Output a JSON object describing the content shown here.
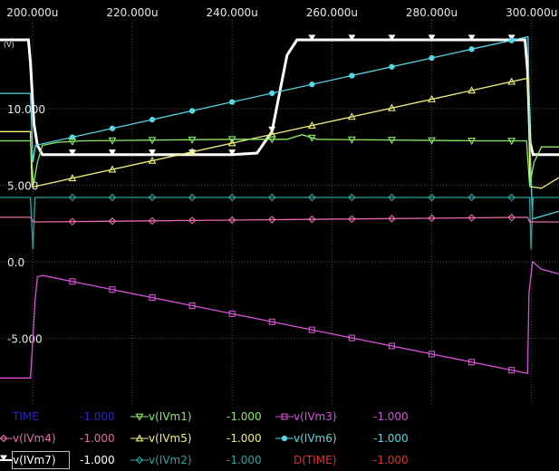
{
  "chart_data": {
    "type": "line",
    "title": "",
    "xlabel": "",
    "ylabel": "(V)",
    "xlim": [
      193.5,
      305.5
    ],
    "ylim": [
      -9.3,
      15.8
    ],
    "x_ticks": [
      200,
      220,
      240,
      260,
      280,
      300
    ],
    "x_tick_labels": [
      "200.000u",
      "220.000u",
      "240.000u",
      "260.000u",
      "280.000u",
      "300.000u"
    ],
    "y_ticks": [
      10,
      5,
      0,
      -5
    ],
    "y_tick_labels": [
      "10.000",
      "5.000",
      "0.0",
      "-5.000"
    ],
    "grid": true,
    "series": [
      {
        "name": "v(IVm7)",
        "color": "#ffffff",
        "marker": "arrow",
        "points": [
          [
            193.5,
            14.5
          ],
          [
            199.2,
            14.5
          ],
          [
            199.6,
            13.0
          ],
          [
            200.3,
            9.0
          ],
          [
            201,
            7.6
          ],
          [
            202,
            7.0
          ],
          [
            205,
            7.0
          ],
          [
            240,
            7.0
          ],
          [
            245,
            7.1
          ],
          [
            248,
            8.5
          ],
          [
            249.5,
            11.0
          ],
          [
            251,
            13.5
          ],
          [
            253,
            14.5
          ],
          [
            298.7,
            14.5
          ],
          [
            299.2,
            12.5
          ],
          [
            299.7,
            7.8
          ],
          [
            300.3,
            7.0
          ],
          [
            302,
            7.0
          ],
          [
            305.5,
            7.0
          ]
        ]
      },
      {
        "name": "v(IVm6)",
        "color": "#55d8e6",
        "marker": "dot",
        "points": [
          [
            193.5,
            11.0
          ],
          [
            199.6,
            11.0
          ],
          [
            200.1,
            6.5
          ],
          [
            200.6,
            7.6
          ],
          [
            299.3,
            14.7
          ],
          [
            299.7,
            7.5
          ],
          [
            300.2,
            2.8
          ],
          [
            305.5,
            3.3
          ]
        ]
      },
      {
        "name": "v(IVm5)",
        "color": "#f2f27a",
        "marker": "triangle",
        "points": [
          [
            193.5,
            8.5
          ],
          [
            199.6,
            8.5
          ],
          [
            199.9,
            4.9
          ],
          [
            200.3,
            4.9
          ],
          [
            299.3,
            12.0
          ],
          [
            299.7,
            4.9
          ],
          [
            302,
            4.8
          ],
          [
            305.5,
            5.5
          ]
        ]
      },
      {
        "name": "v(IVm1)",
        "color": "#88ee66",
        "marker": "triangle-down",
        "points": [
          [
            193.5,
            7.9
          ],
          [
            199.6,
            7.9
          ],
          [
            200.2,
            5.0
          ],
          [
            201,
            6.5
          ],
          [
            202,
            7.6
          ],
          [
            205,
            7.8
          ],
          [
            210,
            7.9
          ],
          [
            240,
            8.0
          ],
          [
            251,
            8.0
          ],
          [
            254,
            8.3
          ],
          [
            257,
            8.0
          ],
          [
            290,
            7.9
          ],
          [
            299,
            7.9
          ],
          [
            299.6,
            5.0
          ],
          [
            300.5,
            6.5
          ],
          [
            302,
            7.5
          ],
          [
            305.5,
            7.5
          ]
        ]
      },
      {
        "name": "v(IVm2)",
        "color": "#2aa3a3",
        "marker": "diamond",
        "points": [
          [
            193.5,
            4.2
          ],
          [
            199.6,
            4.2
          ],
          [
            200.1,
            0.8
          ],
          [
            200.5,
            4.2
          ],
          [
            299.6,
            4.2
          ],
          [
            299.9,
            0.8
          ],
          [
            300.3,
            4.2
          ],
          [
            305.5,
            4.2
          ]
        ]
      },
      {
        "name": "v(IVm4)",
        "color": "#e86aa8",
        "marker": "diamond",
        "points": [
          [
            193.5,
            2.9
          ],
          [
            199.6,
            2.9
          ],
          [
            200.2,
            2.6
          ],
          [
            201,
            2.6
          ],
          [
            299.2,
            2.9
          ],
          [
            299.6,
            2.6
          ],
          [
            305.5,
            2.6
          ]
        ]
      },
      {
        "name": "v(IVm3)",
        "color": "#d94fd9",
        "marker": "square",
        "points": [
          [
            193.5,
            -7.6
          ],
          [
            199.6,
            -7.6
          ],
          [
            200.1,
            -5.0
          ],
          [
            200.5,
            -2.6
          ],
          [
            201,
            -1.0
          ],
          [
            202,
            -0.9
          ],
          [
            299.2,
            -7.3
          ],
          [
            299.5,
            -2.0
          ],
          [
            300.2,
            0.0
          ],
          [
            302,
            -0.5
          ],
          [
            305.5,
            -0.8
          ]
        ]
      }
    ]
  },
  "legend": {
    "rows": [
      [
        {
          "name": "TIME",
          "value": "-1.000",
          "name_color": "#2323d6",
          "value_color": "#2323d6",
          "marker": "none"
        },
        {
          "name": "v(IVm1)",
          "value": "-1.000",
          "name_color": "#88ee66",
          "value_color": "#88ee66",
          "marker": "triangle-down"
        },
        {
          "name": "v(IVm3)",
          "value": "-1.000",
          "name_color": "#d94fd9",
          "value_color": "#d94fd9",
          "marker": "square"
        }
      ],
      [
        {
          "name": "v(IVm4)",
          "value": "-1.000",
          "name_color": "#e86aa8",
          "value_color": "#e86aa8",
          "marker": "diamond"
        },
        {
          "name": "v(IVm5)",
          "value": "-1.000",
          "name_color": "#f2f27a",
          "value_color": "#f2f27a",
          "marker": "triangle"
        },
        {
          "name": "v(IVm6)",
          "value": "-1.000",
          "name_color": "#55d8e6",
          "value_color": "#55d8e6",
          "marker": "dot"
        }
      ],
      [
        {
          "name": "v(IVm7)",
          "value": "-1.000",
          "name_color": "#ffffff",
          "value_color": "#ffffff",
          "marker": "arrow"
        },
        {
          "name": "v(IVm2)",
          "value": "-1.000",
          "name_color": "#2aa3a3",
          "value_color": "#2aa3a3",
          "marker": "diamond"
        },
        {
          "name": "D(TIME)",
          "value": "-1.000",
          "name_color": "#e0302c",
          "value_color": "#e0302c",
          "marker": "none"
        }
      ]
    ]
  }
}
